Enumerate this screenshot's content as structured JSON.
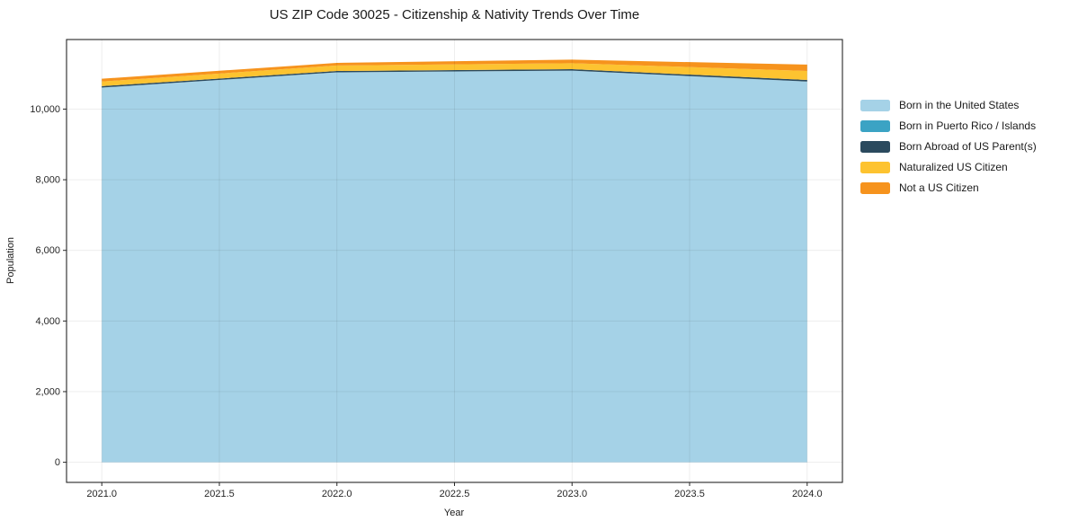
{
  "chart_data": {
    "type": "area",
    "stacked": true,
    "title": "US ZIP Code 30025 - Citizenship & Nativity Trends Over Time",
    "xlabel": "Year",
    "ylabel": "Population",
    "x": [
      2021,
      2022,
      2023,
      2024
    ],
    "series": [
      {
        "name": "Born in the United States",
        "color": "#a5d2e7",
        "values": [
          10610,
          11040,
          11090,
          10780
        ]
      },
      {
        "name": "Born in Puerto Rico / Islands",
        "color": "#3ba3c4",
        "values": [
          0,
          0,
          0,
          0
        ]
      },
      {
        "name": "Born Abroad of US Parent(s)",
        "color": "#2b4a5e",
        "values": [
          40,
          40,
          40,
          45
        ]
      },
      {
        "name": "Naturalized US Citizen",
        "color": "#fdc330",
        "values": [
          130,
          155,
          170,
          255
        ]
      },
      {
        "name": "Not a US Citizen",
        "color": "#f6931d",
        "values": [
          80,
          75,
          100,
          180
        ]
      }
    ],
    "xlim": [
      2020.85,
      2024.15
    ],
    "ylim": [
      -570,
      11970
    ],
    "xticks": [
      2021.0,
      2021.5,
      2022.0,
      2022.5,
      2023.0,
      2023.5,
      2024.0
    ],
    "xtick_labels": [
      "2021.0",
      "2021.5",
      "2022.0",
      "2022.5",
      "2023.0",
      "2023.5",
      "2024.0"
    ],
    "yticks": [
      0,
      2000,
      4000,
      6000,
      8000,
      10000
    ],
    "ytick_labels": [
      "0",
      "2,000",
      "4,000",
      "6,000",
      "8,000",
      "10,000"
    ],
    "grid": true,
    "legend_position": "right-outside",
    "colors": {
      "grid": "rgba(0,0,0,0.08)",
      "spine": "#262626",
      "tick": "#262626",
      "text": "#1a1a1a",
      "background": "#ffffff"
    }
  }
}
